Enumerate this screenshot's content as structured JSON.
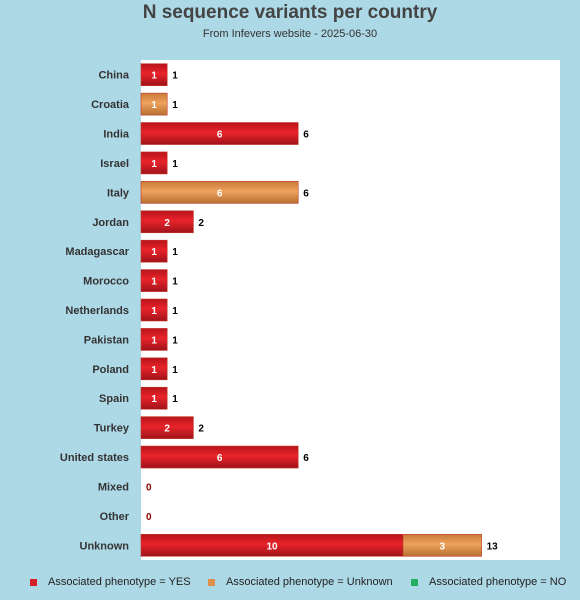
{
  "chart_data": {
    "type": "bar",
    "orientation": "horizontal",
    "stacked": true,
    "title": "N sequence variants per country",
    "subtitle": "From Infevers website - 2025-06-30",
    "categories": [
      "China",
      "Croatia",
      "India",
      "Israel",
      "Italy",
      "Jordan",
      "Madagascar",
      "Morocco",
      "Netherlands",
      "Pakistan",
      "Poland",
      "Spain",
      "Turkey",
      "United states",
      "Mixed",
      "Other",
      "Unknown"
    ],
    "series": [
      {
        "name": "Associated phenotype = YES",
        "color": "#d42026",
        "values": [
          1,
          0,
          6,
          1,
          0,
          2,
          1,
          1,
          1,
          1,
          1,
          1,
          2,
          6,
          0,
          0,
          10
        ]
      },
      {
        "name": "Associated phenotype = Unknown",
        "color": "#e0904a",
        "values": [
          0,
          1,
          0,
          0,
          6,
          0,
          0,
          0,
          0,
          0,
          0,
          0,
          0,
          0,
          0,
          0,
          3
        ]
      },
      {
        "name": "Associated phenotype = NO",
        "color": "#22b060",
        "values": [
          0,
          0,
          0,
          0,
          0,
          0,
          0,
          0,
          0,
          0,
          0,
          0,
          0,
          0,
          0,
          0,
          0
        ]
      }
    ],
    "totals": [
      1,
      1,
      6,
      1,
      6,
      2,
      1,
      1,
      1,
      1,
      1,
      1,
      2,
      6,
      0,
      0,
      13
    ],
    "xlim": [
      0,
      16
    ],
    "grid": false,
    "legend_position": "bottom"
  },
  "colors": {
    "background": "#add8e6",
    "plot_background": "#ffffff",
    "zero_label": "#8b0000"
  }
}
